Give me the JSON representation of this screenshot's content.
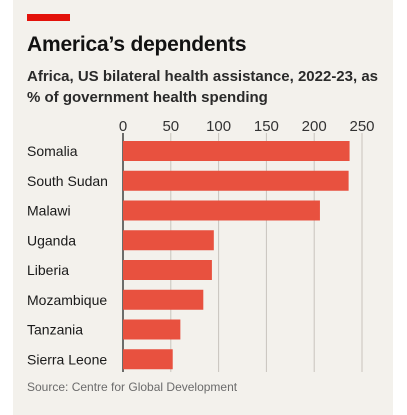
{
  "header": {
    "title": "America’s dependents",
    "subtitle": "Africa, US bilateral health assistance, 2022-23, as % of government health spending"
  },
  "footer": {
    "source": "Source: Centre for Global Development"
  },
  "colors": {
    "accent": "#e3120b",
    "bar": "#e8513f",
    "background": "#f3f1ec",
    "gridline": "#c8c4bd"
  },
  "chart_data": {
    "type": "bar",
    "orientation": "horizontal",
    "title": "America’s dependents",
    "subtitle": "Africa, US bilateral health assistance, 2022-23, as % of government health spending",
    "categories": [
      "Somalia",
      "South Sudan",
      "Malawi",
      "Uganda",
      "Liberia",
      "Mozambique",
      "Tanzania",
      "Sierra Leone"
    ],
    "values": [
      237,
      236,
      206,
      95,
      93,
      84,
      60,
      52
    ],
    "xlim": [
      0,
      250
    ],
    "xticks": [
      0,
      50,
      100,
      150,
      200,
      250
    ],
    "tick_labels": [
      "0",
      "50",
      "100",
      "150",
      "200",
      "250"
    ],
    "xlabel": "",
    "ylabel": "",
    "grid": true,
    "axis_position": "top",
    "source": "Source: Centre for Global Development"
  }
}
